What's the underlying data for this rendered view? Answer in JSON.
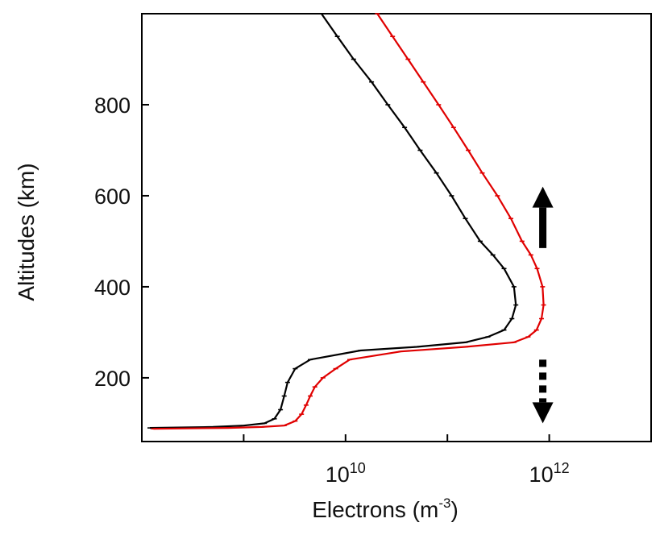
{
  "chart_data": {
    "type": "line",
    "xlabel": "Electrons (m",
    "xlabel_sup": "-3",
    "xlabel_close": ")",
    "ylabel": "Altitudes (km)",
    "xscale": "log",
    "xlim": [
      100000000.0,
      10000000000000.0
    ],
    "ylim": [
      60,
      1000
    ],
    "x_ticks": [
      {
        "value": 10000000000.0,
        "base": "10",
        "exp": "10"
      },
      {
        "value": 1000000000000.0,
        "base": "10",
        "exp": "12"
      }
    ],
    "x_minor_ticks": [
      1000000000.0,
      100000000000.0
    ],
    "y_ticks": [
      200,
      400,
      600,
      800
    ],
    "grid": false,
    "series": [
      {
        "color": "#000000",
        "points": [
          [
            120000000.0,
            90
          ],
          [
            500000000.0,
            92
          ],
          [
            1000000000.0,
            95
          ],
          [
            1600000000.0,
            100
          ],
          [
            2000000000.0,
            110
          ],
          [
            2300000000.0,
            130
          ],
          [
            2500000000.0,
            160
          ],
          [
            2700000000.0,
            190
          ],
          [
            3200000000.0,
            220
          ],
          [
            4500000000.0,
            240
          ],
          [
            14000000000.0,
            260
          ],
          [
            50000000000.0,
            268
          ],
          [
            150000000000.0,
            278
          ],
          [
            250000000000.0,
            290
          ],
          [
            360000000000.0,
            305
          ],
          [
            430000000000.0,
            330
          ],
          [
            470000000000.0,
            360
          ],
          [
            450000000000.0,
            400
          ],
          [
            360000000000.0,
            440
          ],
          [
            280000000000.0,
            470
          ],
          [
            210000000000.0,
            500
          ],
          [
            150000000000.0,
            550
          ],
          [
            110000000000.0,
            600
          ],
          [
            78000000000.0,
            650
          ],
          [
            54000000000.0,
            700
          ],
          [
            38000000000.0,
            750
          ],
          [
            26000000000.0,
            800
          ],
          [
            18000000000.0,
            850
          ],
          [
            12000000000.0,
            900
          ],
          [
            8300000000.0,
            950
          ],
          [
            5800000000.0,
            1000
          ]
        ]
      },
      {
        "color": "#e00000",
        "points": [
          [
            130000000.0,
            88
          ],
          [
            700000000.0,
            90
          ],
          [
            1500000000.0,
            92
          ],
          [
            2500000000.0,
            95
          ],
          [
            3200000000.0,
            105
          ],
          [
            3700000000.0,
            120
          ],
          [
            4100000000.0,
            140
          ],
          [
            4500000000.0,
            160
          ],
          [
            5000000000.0,
            180
          ],
          [
            6000000000.0,
            200
          ],
          [
            8000000000.0,
            220
          ],
          [
            11000000000.0,
            240
          ],
          [
            35000000000.0,
            258
          ],
          [
            150000000000.0,
            268
          ],
          [
            450000000000.0,
            278
          ],
          [
            620000000000.0,
            290
          ],
          [
            750000000000.0,
            305
          ],
          [
            840000000000.0,
            330
          ],
          [
            880000000000.0,
            360
          ],
          [
            860000000000.0,
            400
          ],
          [
            760000000000.0,
            440
          ],
          [
            660000000000.0,
            470
          ],
          [
            540000000000.0,
            500
          ],
          [
            420000000000.0,
            550
          ],
          [
            310000000000.0,
            600
          ],
          [
            220000000000.0,
            650
          ],
          [
            160000000000.0,
            700
          ],
          [
            115000000000.0,
            750
          ],
          [
            82000000000.0,
            800
          ],
          [
            58000000000.0,
            850
          ],
          [
            41000000000.0,
            900
          ],
          [
            29000000000.0,
            950
          ],
          [
            20500000000.0,
            1000
          ]
        ]
      }
    ],
    "annotations": [
      {
        "type": "arrow-up",
        "style": "solid",
        "x": 1000000000000.0,
        "y_from": 485,
        "y_to": 620
      },
      {
        "type": "arrow-down",
        "style": "dotted",
        "x": 1000000000000.0,
        "y_from": 240,
        "y_to": 100
      }
    ]
  }
}
